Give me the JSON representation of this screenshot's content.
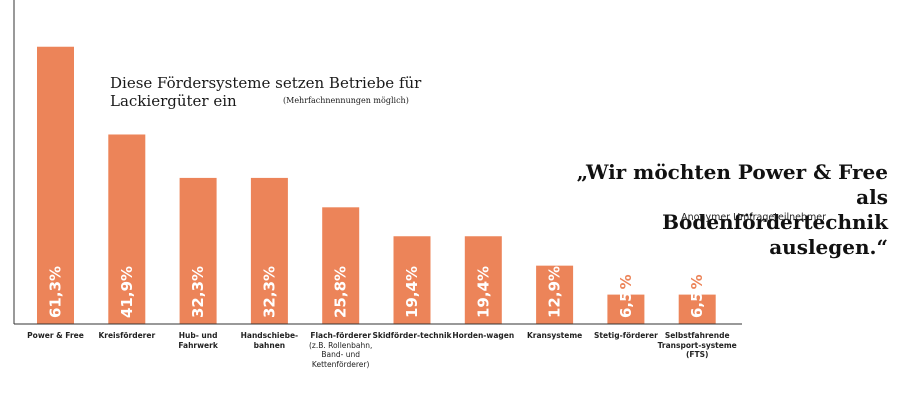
{
  "chart_data": {
    "type": "bar",
    "title": "Diese Fördersysteme setzen Betriebe für",
    "title_line2": "Lackiergüter ein",
    "subtitle": "(Mehrfachnennungen möglich)",
    "categories": [
      {
        "label": "Power & Free",
        "note": ""
      },
      {
        "label": "Kreisförderer",
        "note": ""
      },
      {
        "label": "Hub- und Fahrwerk",
        "note": ""
      },
      {
        "label": "Handschiebe-bahnen",
        "note": ""
      },
      {
        "label": "Flach-förderer",
        "note": "(z.B. Rollenbahn, Band- und Kettenförderer)"
      },
      {
        "label": "Skidförder-technik",
        "note": ""
      },
      {
        "label": "Horden-wagen",
        "note": ""
      },
      {
        "label": "Kransysteme",
        "note": ""
      },
      {
        "label": "Stetig-förderer",
        "note": ""
      },
      {
        "label": "Selbstfahrende Transport-systeme (FTS)",
        "note": ""
      }
    ],
    "values": [
      61.3,
      41.9,
      32.3,
      32.3,
      25.8,
      19.4,
      19.4,
      12.9,
      6.5,
      6.5
    ],
    "value_labels": [
      "61,3%",
      "41,9%",
      "32,3%",
      "32,3%",
      "25,8%",
      "19,4%",
      "19,4%",
      "12,9%",
      "6,5",
      "6,5"
    ],
    "percent_sign": "%",
    "ylim": [
      0,
      65
    ],
    "bar_color": "#ec8459",
    "label_color_inside": "#ffffff",
    "label_color_outside": "#ec8459"
  },
  "quote": {
    "line1": "„Wir möchten Power & Free als",
    "line2": "Bodenfördertechnik auslegen.“",
    "author": "Anonymer Umfrageteilnehmer"
  }
}
